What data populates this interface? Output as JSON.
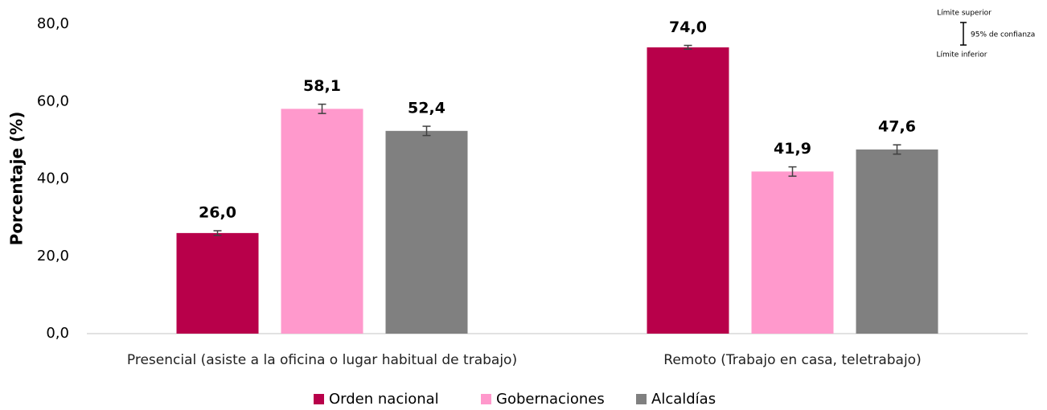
{
  "chart_data": {
    "type": "bar",
    "y_label": "Porcentaje (%)",
    "categories": [
      "Presencial (asiste a la oficina o lugar habitual de trabajo)",
      "Remoto (Trabajo en casa, teletrabajo)"
    ],
    "series": [
      {
        "name": "Orden nacional",
        "color": "#b8004a",
        "values": [
          26.0,
          74.0
        ],
        "value_labels": [
          "26,0",
          "74,0"
        ],
        "errors": [
          0.6,
          0.5
        ]
      },
      {
        "name": "Gobernaciones",
        "color": "#ff99cc",
        "values": [
          58.1,
          41.9
        ],
        "value_labels": [
          "58,1",
          "41,9"
        ],
        "errors": [
          1.2,
          1.2
        ]
      },
      {
        "name": "Alcaldías",
        "color": "#808080",
        "values": [
          52.4,
          47.6
        ],
        "value_labels": [
          "52,4",
          "47,6"
        ],
        "errors": [
          1.2,
          1.2
        ]
      }
    ],
    "ylim": [
      0,
      80
    ],
    "yticks": [
      {
        "value": 0,
        "label": "0,0"
      },
      {
        "value": 20,
        "label": "20,0"
      },
      {
        "value": 40,
        "label": "40,0"
      },
      {
        "value": 60,
        "label": "60,0"
      },
      {
        "value": 80,
        "label": "80,0"
      }
    ],
    "grid": false,
    "legend": "bottom",
    "annotations": [
      "Límite superior",
      "95% de confianza",
      "Límite inferior"
    ]
  }
}
